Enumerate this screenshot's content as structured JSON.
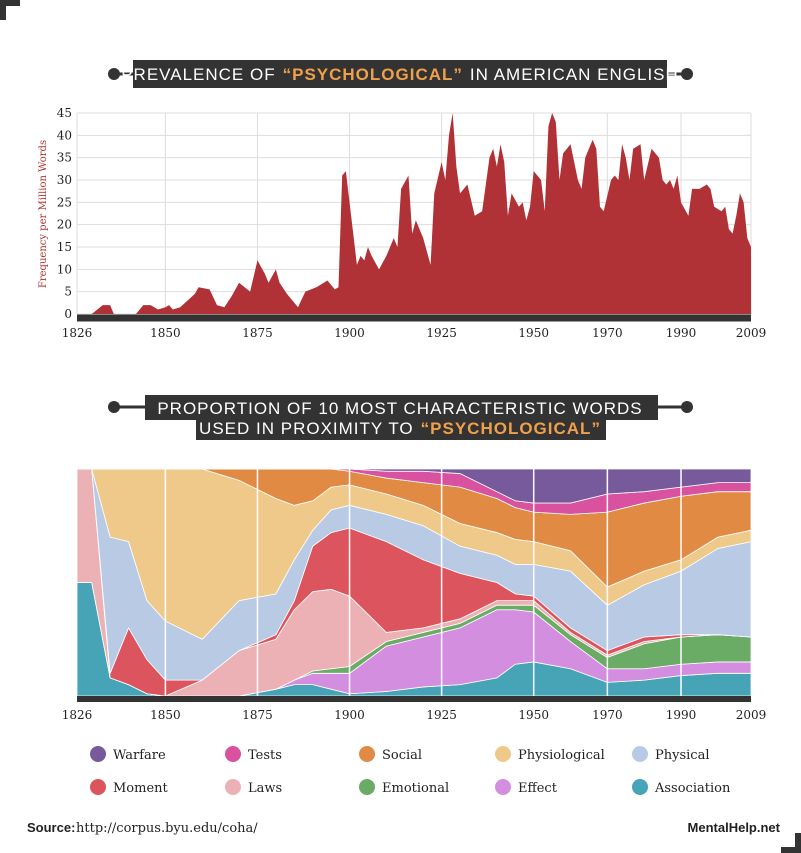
{
  "chart_data": [
    {
      "type": "area",
      "title": [
        "PREVALENCE OF",
        "“PSYCHOLOGICAL”",
        "IN AMERICAN ENGLISH"
      ],
      "ylabel": "Frequency per Million Words",
      "color": "#b03236",
      "grid": true,
      "x": [
        1826,
        1830,
        1833,
        1835,
        1836,
        1842,
        1844,
        1846,
        1848,
        1850,
        1851,
        1852,
        1854,
        1856,
        1858,
        1859,
        1862,
        1864,
        1866,
        1868,
        1870,
        1873,
        1875,
        1877,
        1878,
        1880,
        1881,
        1883,
        1886,
        1888,
        1891,
        1894,
        1896,
        1897,
        1898,
        1899,
        1901,
        1902,
        1903,
        1904,
        1905,
        1906,
        1908,
        1910,
        1912,
        1913,
        1914,
        1916,
        1917,
        1918,
        1920,
        1922,
        1923,
        1925,
        1926,
        1927,
        1928,
        1929,
        1930,
        1932,
        1934,
        1936,
        1938,
        1939,
        1940,
        1941,
        1942,
        1943,
        1944,
        1946,
        1947,
        1948,
        1949,
        1950,
        1952,
        1953,
        1954,
        1955,
        1956,
        1957,
        1958,
        1960,
        1962,
        1963,
        1964,
        1966,
        1967,
        1968,
        1969,
        1971,
        1972,
        1973,
        1974,
        1975,
        1976,
        1977,
        1979,
        1980,
        1982,
        1984,
        1985,
        1986,
        1987,
        1988,
        1989,
        1990,
        1992,
        1993,
        1995,
        1997,
        1998,
        1999,
        2001,
        2002,
        2003,
        2004,
        2005,
        2006,
        2007,
        2008,
        2009
      ],
      "values": [
        0,
        0,
        2,
        2,
        0,
        0,
        2,
        2,
        1,
        1.5,
        2,
        1,
        1.5,
        3,
        4.5,
        6,
        5.5,
        2,
        1.5,
        4,
        7,
        5,
        12,
        9,
        7,
        10,
        7,
        4.5,
        1.5,
        5,
        6,
        7.5,
        5.5,
        6,
        31,
        32,
        18,
        11,
        13,
        12,
        15,
        13,
        10,
        13,
        17,
        15,
        28,
        31,
        18,
        21,
        17,
        11,
        27,
        34,
        30,
        40,
        45,
        33,
        27,
        29,
        22,
        23,
        35,
        37,
        33,
        38,
        34,
        22,
        27,
        24,
        25,
        21,
        24,
        32,
        30,
        23,
        42,
        45,
        43,
        30,
        36,
        38,
        30,
        28,
        35,
        39,
        37,
        24,
        23,
        30,
        31,
        30,
        38,
        35,
        30,
        37,
        38,
        30,
        37,
        35,
        30,
        29,
        30,
        28,
        31,
        25,
        22,
        28,
        28,
        29,
        28,
        24,
        23,
        24,
        19,
        18,
        22,
        27,
        25,
        17,
        15
      ],
      "xlim": [
        1826,
        2009
      ],
      "xticks": [
        1826,
        1850,
        1875,
        1900,
        1925,
        1950,
        1970,
        1990,
        2009
      ],
      "ylim": [
        0,
        45
      ],
      "yticks": [
        0,
        5,
        10,
        15,
        20,
        25,
        30,
        35,
        40,
        45
      ]
    },
    {
      "type": "stacked_area",
      "title": [
        "PROPORTION OF 10 MOST CHARACTERISTIC WORDS",
        "USED IN PROXIMITY TO",
        "“PSYCHOLOGICAL”"
      ],
      "x": [
        1826,
        1830,
        1835,
        1840,
        1845,
        1850,
        1860,
        1870,
        1880,
        1885,
        1890,
        1895,
        1900,
        1910,
        1920,
        1930,
        1940,
        1945,
        1950,
        1960,
        1970,
        1980,
        1990,
        2000,
        2009
      ],
      "xlim": [
        1826,
        2009
      ],
      "xticks": [
        1826,
        1850,
        1875,
        1900,
        1925,
        1950,
        1970,
        1990,
        2009
      ],
      "ylim": [
        0,
        100
      ],
      "series": [
        {
          "name": "Warfare",
          "color": "#765a9c",
          "values": [
            0,
            0,
            0,
            0,
            0,
            0,
            0,
            0,
            0,
            0,
            0,
            0,
            0,
            1,
            1,
            2,
            10,
            14,
            15,
            15,
            11,
            10,
            8,
            6,
            6
          ]
        },
        {
          "name": "Tests",
          "color": "#d852a0",
          "values": [
            0,
            0,
            0,
            0,
            0,
            0,
            0,
            0,
            0,
            0,
            0,
            0,
            1,
            3,
            5,
            6,
            3,
            3,
            4,
            5,
            8,
            5,
            4,
            4,
            4
          ]
        },
        {
          "name": "Social",
          "color": "#e08a43",
          "values": [
            0,
            0,
            0,
            0,
            0,
            0,
            0,
            5,
            13,
            16,
            14,
            8,
            6,
            7,
            10,
            16,
            15,
            14,
            13,
            16,
            33,
            30,
            28,
            20,
            17
          ]
        },
        {
          "name": "Physiological",
          "color": "#efc98a",
          "values": [
            0,
            0,
            30,
            32,
            58,
            67,
            75,
            53,
            42,
            24,
            13,
            10,
            9,
            9,
            9,
            10,
            10,
            11,
            10,
            9,
            8,
            6,
            5,
            5,
            5
          ]
        },
        {
          "name": "Physical",
          "color": "#b9cbe4",
          "values": [
            0,
            0,
            60,
            38,
            26,
            26,
            18,
            22,
            18,
            18,
            7,
            10,
            10,
            12,
            15,
            12,
            12,
            13,
            14,
            25,
            20,
            23,
            28,
            38,
            42
          ]
        },
        {
          "name": "Moment",
          "color": "#dc555e",
          "values": [
            0,
            0,
            2,
            25,
            15,
            7,
            0,
            0,
            2,
            4,
            20,
            25,
            30,
            40,
            30,
            20,
            8,
            3,
            2,
            2,
            2,
            2,
            1,
            0,
            0
          ]
        },
        {
          "name": "Laws",
          "color": "#ebb1b4",
          "values": [
            50,
            50,
            0,
            0,
            0,
            0,
            7,
            20,
            22,
            31,
            35,
            35,
            31,
            4,
            2,
            2,
            2,
            2,
            2,
            1,
            1,
            1,
            0,
            0,
            0
          ]
        },
        {
          "name": "Emotional",
          "color": "#6aab66",
          "values": [
            0,
            0,
            0,
            0,
            0,
            0,
            0,
            0,
            0,
            0,
            1,
            2,
            3,
            2,
            2,
            2,
            2,
            2,
            3,
            3,
            5,
            11,
            12,
            12,
            11
          ]
        },
        {
          "name": "Effect",
          "color": "#d48ee0",
          "values": [
            0,
            0,
            0,
            0,
            0,
            0,
            0,
            0,
            0,
            2,
            5,
            7,
            9,
            20,
            22,
            25,
            30,
            24,
            22,
            12,
            6,
            5,
            5,
            5,
            5
          ]
        },
        {
          "name": "Association",
          "color": "#47a3b6",
          "values": [
            50,
            50,
            8,
            5,
            1,
            0,
            0,
            0,
            3,
            5,
            5,
            3,
            1,
            2,
            4,
            5,
            8,
            14,
            15,
            12,
            6,
            7,
            9,
            10,
            10
          ]
        }
      ]
    }
  ],
  "source_label": "Source:",
  "source_url": "http://corpus.byu.edu/coha/",
  "brand": "MentalHelp.net"
}
